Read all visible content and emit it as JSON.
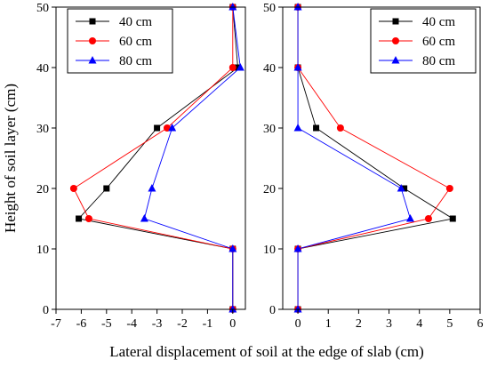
{
  "chart_data": [
    {
      "type": "line",
      "panel": "left",
      "y": [
        0,
        10,
        15,
        20,
        30,
        40,
        50
      ],
      "series": [
        {
          "name": "40 cm",
          "color": "#000000",
          "marker": "square",
          "values": [
            0,
            0,
            -6.1,
            -5.0,
            -3.0,
            0.2,
            0
          ]
        },
        {
          "name": "60 cm",
          "color": "#ff0000",
          "marker": "circle",
          "values": [
            0,
            0,
            -5.7,
            -6.3,
            -2.6,
            0.0,
            0
          ]
        },
        {
          "name": "80 cm",
          "color": "#0000ff",
          "marker": "triangle",
          "values": [
            0,
            0,
            -3.5,
            -3.2,
            -2.4,
            0.3,
            0
          ]
        }
      ],
      "xlim": [
        -7,
        0.5
      ],
      "ylim": [
        0,
        50
      ],
      "xticks": [
        -7,
        -6,
        -5,
        -4,
        -3,
        -2,
        -1,
        0
      ],
      "yticks": [
        0,
        10,
        20,
        30,
        40,
        50
      ],
      "legend_position": "top-left"
    },
    {
      "type": "line",
      "panel": "right",
      "y": [
        0,
        10,
        15,
        20,
        30,
        40,
        50
      ],
      "series": [
        {
          "name": "40 cm",
          "color": "#000000",
          "marker": "square",
          "values": [
            0,
            0,
            5.1,
            3.5,
            0.6,
            0,
            0
          ]
        },
        {
          "name": "60 cm",
          "color": "#ff0000",
          "marker": "circle",
          "values": [
            0,
            0,
            4.3,
            5.0,
            1.4,
            0,
            0
          ]
        },
        {
          "name": "80 cm",
          "color": "#0000ff",
          "marker": "triangle",
          "values": [
            0,
            0,
            3.7,
            3.4,
            0.0,
            0,
            0
          ]
        }
      ],
      "xlim": [
        -0.5,
        6
      ],
      "ylim": [
        0,
        50
      ],
      "xticks": [
        0,
        1,
        2,
        3,
        4,
        5,
        6
      ],
      "yticks": [
        0,
        10,
        20,
        30,
        40,
        50
      ],
      "legend_position": "top-right"
    }
  ],
  "labels": {
    "xlabel": "Lateral displacement of soil at the edge of slab (cm)",
    "ylabel": "Height of soil layer (cm)"
  }
}
